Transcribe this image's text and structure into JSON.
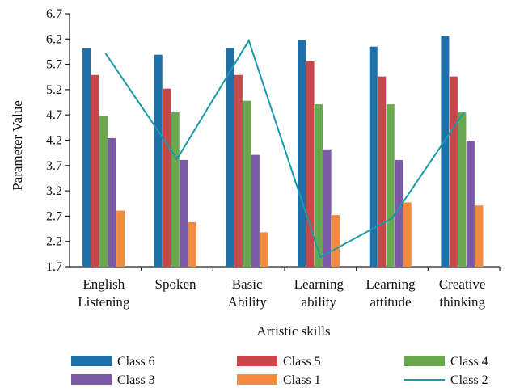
{
  "chart_data": {
    "type": "bar",
    "title": "",
    "xlabel": "Artistic skills",
    "ylabel": "Parameter Value",
    "ylim": [
      1.7,
      6.7
    ],
    "yticks": [
      "1.7",
      "2.2",
      "2.7",
      "3.2",
      "3.7",
      "4.2",
      "4.7",
      "5.2",
      "5.7",
      "6.2",
      "6.7"
    ],
    "categories": [
      [
        "English",
        "Listening"
      ],
      [
        "Spoken"
      ],
      [
        "Basic",
        "Ability"
      ],
      [
        "Learning",
        "ability"
      ],
      [
        "Learning",
        "attitude"
      ],
      [
        "Creative",
        "thinking"
      ]
    ],
    "series": [
      {
        "name": "Class 6",
        "type": "bar",
        "color": "#1f6fa8",
        "values": [
          6.02,
          5.89,
          6.02,
          6.18,
          6.05,
          6.26
        ]
      },
      {
        "name": "Class 5",
        "type": "bar",
        "color": "#c8474a",
        "values": [
          5.49,
          5.22,
          5.49,
          5.76,
          5.46,
          5.46
        ]
      },
      {
        "name": "Class 4",
        "type": "bar",
        "color": "#6aa84f",
        "values": [
          4.68,
          4.75,
          4.98,
          4.91,
          4.91,
          4.75
        ]
      },
      {
        "name": "Class 3",
        "type": "bar",
        "color": "#7b5aa6",
        "values": [
          4.24,
          3.81,
          3.91,
          4.02,
          3.81,
          4.19
        ]
      },
      {
        "name": "Class 1",
        "type": "bar",
        "color": "#f28a40",
        "values": [
          2.81,
          2.58,
          2.38,
          2.72,
          2.97,
          2.91
        ]
      },
      {
        "name": "Class 2",
        "type": "line",
        "color": "#1a9aa8",
        "values": [
          5.92,
          3.83,
          6.17,
          1.89,
          2.66,
          4.75
        ]
      }
    ],
    "legend": {
      "position": "bottom",
      "rows": [
        [
          "Class 6",
          "Class 5",
          "Class 4"
        ],
        [
          "Class 3",
          "Class 1",
          "Class 2"
        ]
      ]
    }
  }
}
